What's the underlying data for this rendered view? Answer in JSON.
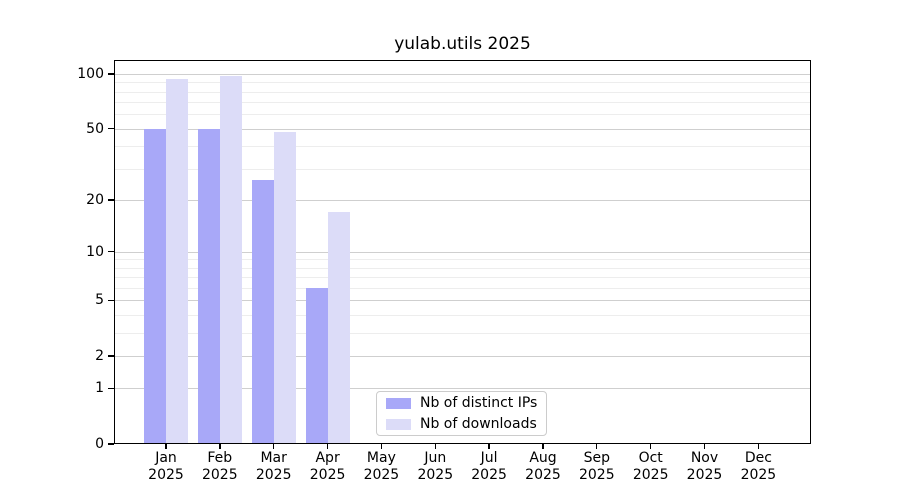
{
  "chart_data": {
    "type": "bar",
    "title": "yulab.utils 2025",
    "categories": [
      "Jan",
      "Feb",
      "Mar",
      "Apr",
      "May",
      "Jun",
      "Jul",
      "Aug",
      "Sep",
      "Oct",
      "Nov",
      "Dec"
    ],
    "x_tick_year": "2025",
    "series": [
      {
        "name": "Nb of distinct IPs",
        "color": "#a8a8f8",
        "values": [
          50,
          50,
          26,
          6,
          0,
          0,
          0,
          0,
          0,
          0,
          0,
          0
        ]
      },
      {
        "name": "Nb of downloads",
        "color": "#dcdcf8",
        "values": [
          94,
          97,
          48,
          17,
          0,
          0,
          0,
          0,
          0,
          0,
          0,
          0
        ]
      }
    ],
    "y_axis": {
      "scale": "log1p",
      "major_ticks": [
        0,
        1,
        2,
        5,
        10,
        20,
        50,
        100
      ],
      "minor_ticks": [
        3,
        4,
        6,
        7,
        8,
        9,
        30,
        40,
        60,
        70,
        80,
        90
      ],
      "top_value": 110
    },
    "grid": {
      "major_color": "#cfcfcf",
      "minor_color": "#ededed"
    },
    "legend_position": "inside-bottom-center",
    "frame_color": "#000000",
    "background_color": "#ffffff"
  }
}
